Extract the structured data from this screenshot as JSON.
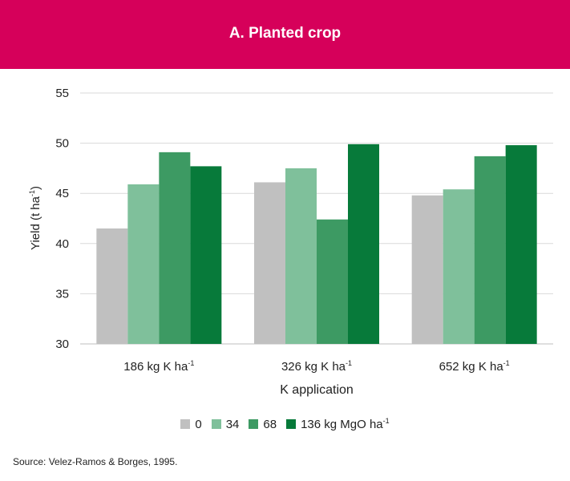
{
  "header": {
    "title": "A. Planted crop"
  },
  "source": "Source: Velez-Ramos & Borges, 1995.",
  "chart_data": {
    "type": "bar",
    "title": "A. Planted crop",
    "xlabel": "K application",
    "ylabel": "Yield (t ha-1)",
    "ylim": [
      30,
      55
    ],
    "yticks": [
      30,
      35,
      40,
      45,
      50,
      55
    ],
    "grid": true,
    "legend_position": "bottom",
    "categories": [
      "186 kg K ha-1",
      "326 kg K ha-1",
      "652 kg K ha-1"
    ],
    "series": [
      {
        "name": "0",
        "color": "#c0c0c0",
        "values": [
          41.5,
          46.1,
          44.8
        ]
      },
      {
        "name": "34",
        "color": "#7fc09b",
        "values": [
          45.9,
          47.5,
          45.4
        ]
      },
      {
        "name": "68",
        "color": "#3d9a63",
        "values": [
          49.1,
          42.4,
          48.7
        ]
      },
      {
        "name": "136 kg MgO ha-1",
        "color": "#077a3a",
        "values": [
          47.7,
          49.9,
          49.8
        ]
      }
    ]
  }
}
